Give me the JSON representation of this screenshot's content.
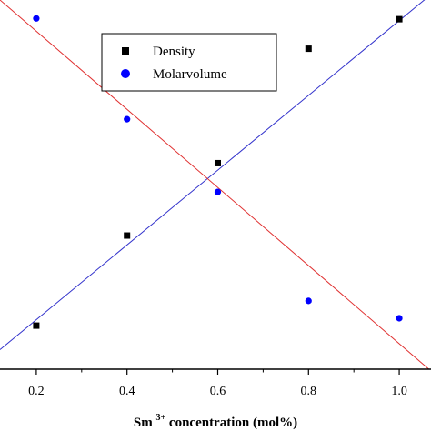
{
  "chart_data": {
    "type": "scatter",
    "xlabel": {
      "base": "Sm",
      "sup": "3+",
      "rest": "concentration (mol%)"
    },
    "ylabel": "",
    "xlim": [
      0.12,
      1.07
    ],
    "ylim": [
      0,
      1
    ],
    "xticks": [
      "0.2",
      "0.4",
      "0.6",
      "0.8",
      "1.0"
    ],
    "xtick_values": [
      0.2,
      0.4,
      0.6,
      0.8,
      1.0
    ],
    "grid": false,
    "legend_position": "top-center",
    "series": [
      {
        "name": "Density",
        "marker": "square",
        "color": "#000000",
        "line_color": "#3333cc",
        "x": [
          0.2,
          0.4,
          0.6,
          0.8,
          1.0
        ],
        "y": [
          0.118,
          0.362,
          0.558,
          0.868,
          0.948
        ],
        "fit": {
          "x": [
            0.12,
            1.07
          ],
          "y": [
            0.053,
            1.015
          ]
        }
      },
      {
        "name": "Molarvolume",
        "marker": "circle",
        "color": "#0000ff",
        "line_color": "#e03030",
        "x": [
          0.2,
          0.4,
          0.6,
          0.8,
          1.0
        ],
        "y": [
          0.95,
          0.677,
          0.48,
          0.185,
          0.138
        ],
        "fit": {
          "x": [
            0.12,
            1.07
          ],
          "y": [
            1.0,
            -0.005
          ]
        }
      }
    ]
  }
}
